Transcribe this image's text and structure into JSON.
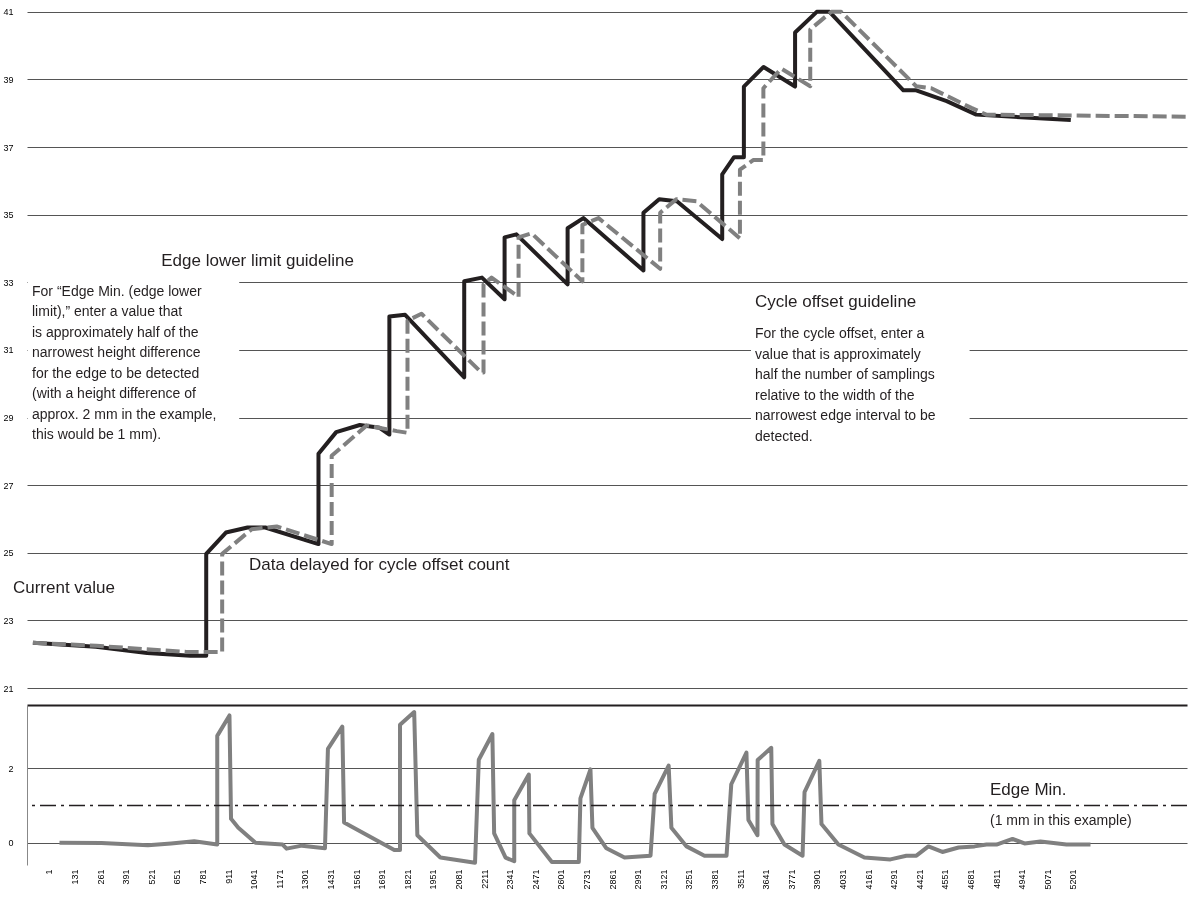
{
  "chart_data": [
    {
      "type": "line",
      "xlim": [
        -110,
        5780
      ],
      "xticks": [
        1,
        131,
        261,
        391,
        521,
        651,
        781,
        911,
        1041,
        1171,
        1301,
        1431,
        1561,
        1691,
        1821,
        1951,
        2081,
        2211,
        2341,
        2471,
        2601,
        2731,
        2861,
        2991,
        3121,
        3251,
        3381,
        3511,
        3641,
        3771,
        3901,
        4031,
        4161,
        4291,
        4421,
        4551,
        4681,
        4811,
        4941,
        5071,
        5201
      ],
      "ylim": [
        20.5,
        41.35
      ],
      "yticks": [
        21,
        23,
        25,
        27,
        29,
        31,
        33,
        35,
        37,
        39,
        41
      ],
      "grid": "y",
      "tick_labels": "y",
      "annotations": [
        "Edge lower limit guideline",
        "For “Edge Min. (edge lower limit),” enter a value that is approximately half of the narrowest height difference for the edge to be detected (with a height difference of approx. 2 mm in the example, this would be 1 mm).",
        "Cycle offset guideline",
        "For the cycle offset, enter a value that is approximately half the number of samplings relative to the width of the narrowest edge interval to be detected."
      ],
      "series": [
        {
          "name": "Current value",
          "color": "#231f20",
          "line_style": "solid",
          "x": [
            -80,
            240,
            500,
            720,
            800,
            800,
            900,
            1010,
            1100,
            1370,
            1370,
            1460,
            1580,
            1680,
            1730,
            1730,
            1810,
            2110,
            2110,
            2200,
            2315,
            2315,
            2375,
            2635,
            2635,
            2715,
            3020,
            3020,
            3100,
            3190,
            3420,
            3420,
            3480,
            3530,
            3530,
            3630,
            3790,
            3790,
            3900,
            3965,
            4340,
            4405,
            4560,
            4710,
            5190
          ],
          "values": [
            22.34,
            22.22,
            22.04,
            21.96,
            21.96,
            24.97,
            25.6,
            25.75,
            25.75,
            25.26,
            27.93,
            28.57,
            28.78,
            28.7,
            28.5,
            31.99,
            32.04,
            30.19,
            33.03,
            33.14,
            32.5,
            34.33,
            34.42,
            32.94,
            34.6,
            34.9,
            33.35,
            35.06,
            35.46,
            35.4,
            34.28,
            36.19,
            36.7,
            36.7,
            38.79,
            39.37,
            38.79,
            40.39,
            41.0,
            41.0,
            38.68,
            38.68,
            38.36,
            37.96,
            37.8
          ]
        },
        {
          "name": "Data delayed for cycle offset count",
          "color": "#808080",
          "line_style": "dashed",
          "x": [
            -80,
            243,
            700,
            881,
            881,
            1031,
            1158,
            1437,
            1437,
            1615,
            1768,
            1822,
            1822,
            1893,
            2198,
            2208,
            2208,
            2249,
            2386,
            2386,
            2452,
            2710,
            2710,
            2792,
            3105,
            3105,
            3188,
            3289,
            3510,
            3510,
            3579,
            3629,
            3629,
            3720,
            3867,
            3867,
            3974,
            4024,
            4405,
            4482,
            4685,
            4761,
            5777
          ],
          "values": [
            22.34,
            22.25,
            22.07,
            22.07,
            24.97,
            25.7,
            25.78,
            25.26,
            27.87,
            28.77,
            28.6,
            28.55,
            31.87,
            32.07,
            30.33,
            30.33,
            32.94,
            33.14,
            32.57,
            34.33,
            34.45,
            33.03,
            34.7,
            34.9,
            33.4,
            35.06,
            35.46,
            35.4,
            34.3,
            36.33,
            36.62,
            36.62,
            38.74,
            39.32,
            38.8,
            40.48,
            41.0,
            41.0,
            38.8,
            38.74,
            38.16,
            37.96,
            37.9
          ]
        }
      ]
    },
    {
      "type": "line",
      "xlim": [
        -110,
        5780
      ],
      "xticks": [
        1,
        131,
        261,
        391,
        521,
        651,
        781,
        911,
        1041,
        1171,
        1301,
        1431,
        1561,
        1691,
        1821,
        1951,
        2081,
        2211,
        2341,
        2471,
        2601,
        2731,
        2861,
        2991,
        3121,
        3251,
        3381,
        3511,
        3641,
        3771,
        3901,
        4031,
        4161,
        4291,
        4421,
        4551,
        4681,
        4811,
        4941,
        5071,
        5201
      ],
      "ylim": [
        -0.6,
        3.7
      ],
      "yticks": [
        0,
        2
      ],
      "grid": "y",
      "ref_lines": [
        {
          "axis": "y",
          "value": 1,
          "label": "Edge Min.",
          "color": "#231f20",
          "line_style": "dashed"
        }
      ],
      "annotations": [
        "(1 mm in this example)"
      ],
      "series": [
        {
          "color": "#808080",
          "line_style": "solid",
          "x": [
            55,
            268,
            504,
            622,
            739,
            856,
            856,
            918,
            926,
            963,
            1050,
            1188,
            1208,
            1286,
            1403,
            1418,
            1491,
            1500,
            1755,
            1784,
            1784,
            1856,
            1872,
            1989,
            2165,
            2184,
            2253,
            2262,
            2320,
            2364,
            2364,
            2438,
            2441,
            2555,
            2692,
            2700,
            2751,
            2761,
            2832,
            2924,
            3056,
            3077,
            3148,
            3162,
            3239,
            3330,
            3442,
            3466,
            3543,
            3553,
            3599,
            3600,
            3669,
            3675,
            3736,
            3828,
            3838,
            3913,
            3924,
            4010,
            4142,
            4274,
            4355,
            4406,
            4467,
            4538,
            4620,
            4701,
            4762,
            4813,
            4894,
            4955,
            5036,
            5168,
            5290
          ],
          "values": [
            0.0,
            -0.01,
            -0.07,
            -0.02,
            0.04,
            -0.05,
            2.87,
            3.42,
            0.64,
            0.4,
            0.0,
            -0.05,
            -0.16,
            -0.08,
            -0.15,
            2.52,
            3.12,
            0.54,
            -0.2,
            -0.2,
            3.17,
            3.51,
            0.2,
            -0.4,
            -0.54,
            2.23,
            2.92,
            0.25,
            -0.4,
            -0.5,
            1.14,
            1.83,
            0.25,
            -0.52,
            -0.52,
            1.19,
            1.97,
            0.4,
            -0.15,
            -0.4,
            -0.35,
            1.31,
            2.07,
            0.4,
            -0.1,
            -0.35,
            -0.35,
            1.57,
            2.42,
            0.61,
            0.2,
            2.22,
            2.55,
            0.5,
            -0.05,
            -0.35,
            1.36,
            2.2,
            0.5,
            -0.05,
            -0.4,
            -0.45,
            -0.35,
            -0.35,
            -0.1,
            -0.25,
            -0.13,
            -0.1,
            -0.05,
            -0.05,
            0.1,
            -0.02,
            0.03,
            -0.05,
            -0.05
          ]
        }
      ]
    }
  ]
}
